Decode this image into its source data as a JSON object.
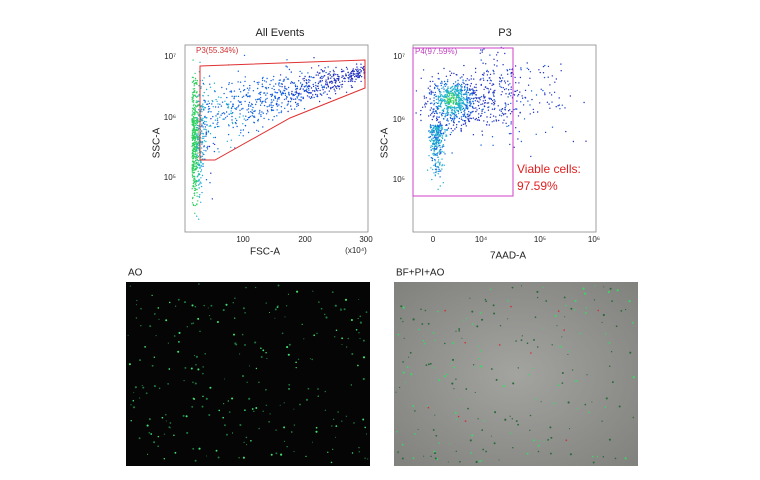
{
  "panels": [
    {
      "title": "All Events",
      "x_label": "FSC-A",
      "y_label": "SSC-A",
      "x_ticks": [
        "100",
        "200",
        "300"
      ],
      "x_unit": "(x10⁴)",
      "y_ticks": [
        "10⁷",
        "10⁶",
        "10⁵"
      ],
      "gate": "P3(55.34%)"
    },
    {
      "title": "P3",
      "x_label": "7AAD-A",
      "y_label": "SSC-A",
      "x_ticks": [
        "0",
        "10⁴",
        "10⁵",
        "10⁶"
      ],
      "y_ticks": [
        "10⁷",
        "10⁶",
        "10⁵"
      ],
      "gate": "P4(97.59%)",
      "annotation": [
        "Viable cells:",
        "97.59%"
      ]
    }
  ],
  "images": [
    {
      "label": "AO"
    },
    {
      "label": "BF+PI+AO"
    }
  ]
}
